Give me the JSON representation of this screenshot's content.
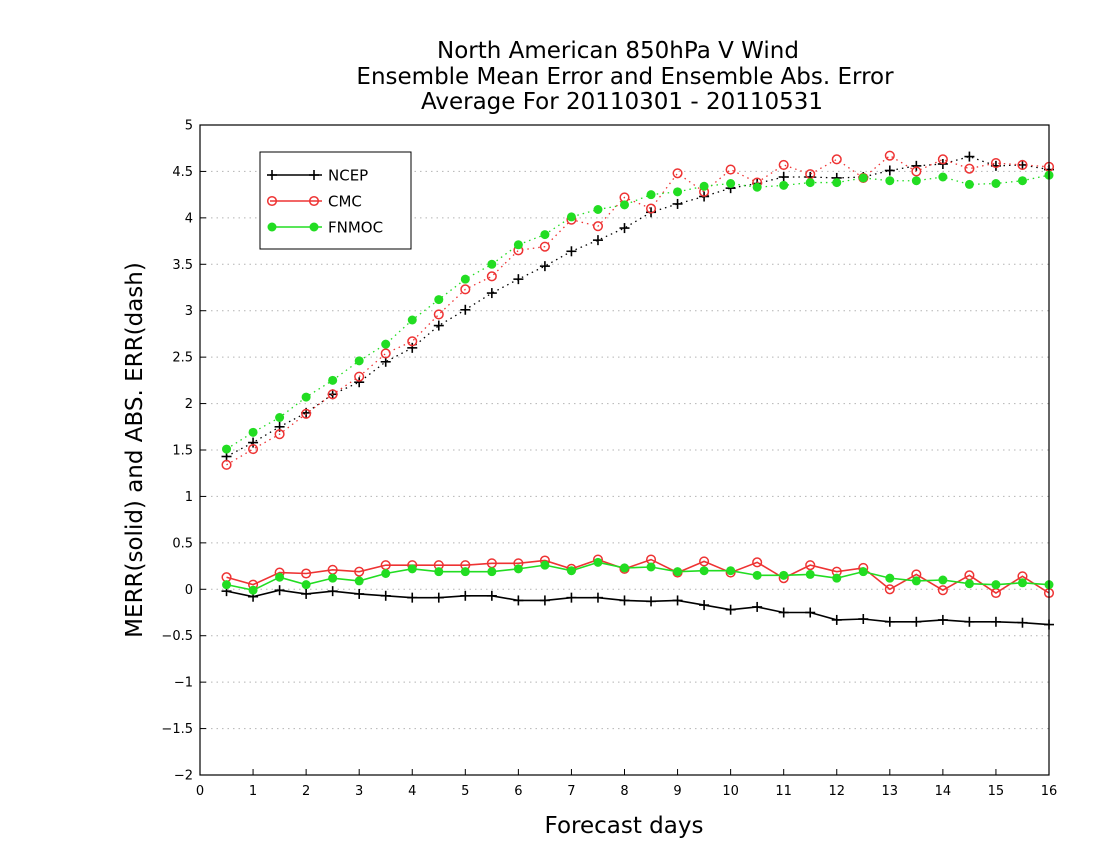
{
  "chart_data": {
    "type": "line",
    "title": [
      "North American 850hPa V Wind",
      "Ensemble Mean Error and Ensemble Abs. Error",
      "Average For 20110301 - 20110531"
    ],
    "xlabel": "Forecast days",
    "ylabel": "MERR(solid) and ABS. ERR(dash)",
    "xlim": [
      0,
      16
    ],
    "ylim": [
      -2,
      5
    ],
    "xticks": [
      "0",
      "1",
      "2",
      "3",
      "4",
      "5",
      "6",
      "7",
      "8",
      "9",
      "10",
      "11",
      "12",
      "13",
      "14",
      "15",
      "16"
    ],
    "yticks": [
      "−2",
      "−1.5",
      "−1",
      "−0.5",
      "0",
      "0.5",
      "1",
      "1.5",
      "2",
      "2.5",
      "3",
      "3.5",
      "4",
      "4.5",
      "5"
    ],
    "grid": "horizontal dotted",
    "legend_position": "top-left",
    "x": [
      0.5,
      1,
      1.5,
      2,
      2.5,
      3,
      3.5,
      4,
      4.5,
      5,
      5.5,
      6,
      6.5,
      7,
      7.5,
      8,
      8.5,
      9,
      9.5,
      10,
      10.5,
      11,
      11.5,
      12,
      12.5,
      13,
      13.5,
      14,
      14.5,
      15,
      15.5,
      16
    ],
    "series": [
      {
        "name": "NCEP",
        "color": "#000000",
        "marker": "plus",
        "mean_error": [
          -0.02,
          -0.08,
          -0.01,
          -0.05,
          -0.02,
          -0.05,
          -0.07,
          -0.09,
          -0.09,
          -0.07,
          -0.07,
          -0.12,
          -0.12,
          -0.09,
          -0.09,
          -0.12,
          -0.13,
          -0.12,
          -0.17,
          -0.22,
          -0.19,
          -0.25,
          -0.25,
          -0.33,
          -0.32,
          -0.35,
          -0.35,
          -0.33,
          -0.35,
          -0.35,
          -0.36,
          -0.38
        ],
        "abs_error": [
          1.43,
          1.58,
          1.75,
          1.9,
          2.1,
          2.23,
          2.45,
          2.6,
          2.84,
          3.01,
          3.19,
          3.34,
          3.48,
          3.64,
          3.76,
          3.89,
          4.06,
          4.15,
          4.23,
          4.32,
          4.37,
          4.44,
          4.44,
          4.43,
          4.44,
          4.51,
          4.56,
          4.58,
          4.66,
          4.56,
          4.57,
          4.52
        ]
      },
      {
        "name": "CMC",
        "color": "#ee3333",
        "marker": "open-circle",
        "mean_error": [
          0.13,
          0.05,
          0.18,
          0.17,
          0.21,
          0.19,
          0.26,
          0.26,
          0.26,
          0.26,
          0.28,
          0.28,
          0.31,
          0.22,
          0.32,
          0.22,
          0.32,
          0.18,
          0.3,
          0.18,
          0.29,
          0.12,
          0.26,
          0.19,
          0.23,
          0.0,
          0.16,
          -0.01,
          0.15,
          -0.04,
          0.14,
          -0.04
        ],
        "abs_error": [
          1.34,
          1.51,
          1.67,
          1.89,
          2.1,
          2.29,
          2.54,
          2.67,
          2.96,
          3.23,
          3.37,
          3.65,
          3.69,
          3.98,
          3.91,
          4.22,
          4.1,
          4.48,
          4.28,
          4.52,
          4.38,
          4.57,
          4.47,
          4.63,
          4.43,
          4.67,
          4.5,
          4.63,
          4.53,
          4.59,
          4.57,
          4.55
        ]
      },
      {
        "name": "FNMOC",
        "color": "#22dd22",
        "marker": "filled-circle",
        "mean_error": [
          0.05,
          -0.01,
          0.13,
          0.05,
          0.12,
          0.09,
          0.17,
          0.22,
          0.19,
          0.19,
          0.19,
          0.22,
          0.26,
          0.2,
          0.29,
          0.23,
          0.24,
          0.19,
          0.2,
          0.2,
          0.15,
          0.15,
          0.16,
          0.12,
          0.19,
          0.12,
          0.09,
          0.1,
          0.06,
          0.05,
          0.07,
          0.05
        ],
        "abs_error": [
          1.51,
          1.69,
          1.85,
          2.07,
          2.25,
          2.46,
          2.64,
          2.9,
          3.12,
          3.34,
          3.5,
          3.71,
          3.82,
          4.01,
          4.09,
          4.14,
          4.25,
          4.28,
          4.34,
          4.37,
          4.33,
          4.35,
          4.38,
          4.38,
          4.43,
          4.4,
          4.4,
          4.44,
          4.36,
          4.37,
          4.4,
          4.46
        ]
      }
    ]
  }
}
